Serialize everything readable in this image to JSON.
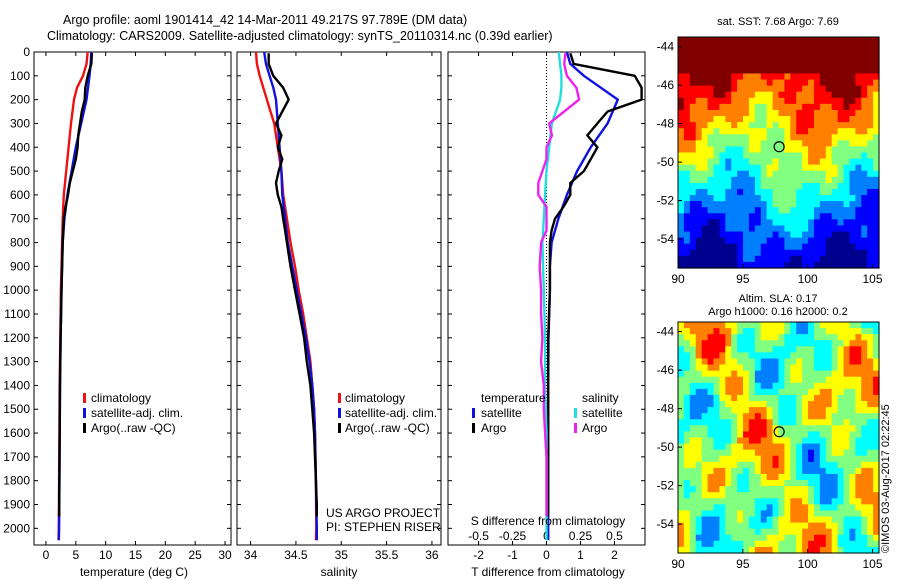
{
  "header": {
    "line1": "Argo profile: aoml 1901414_42 14-Mar-2011 49.217S 97.789E (DM data)",
    "line2": "Climatology: CARS2009. Satellite-adjusted climatology: synTS_20110314.nc (0.39d earlier)"
  },
  "footer": {
    "project": "US ARGO PROJECT",
    "pi": "PI: STEPHEN RISER",
    "stamp": "©IMOS 03-Aug-2017 02:22:45"
  },
  "colors": {
    "climatology": "#ee1111",
    "satellite": "#1111dd",
    "argo": "#000000",
    "sat_salinity": "#22dddd",
    "argo_salinity": "#ee22ee"
  },
  "chart_data": [
    {
      "id": "temperature",
      "type": "line",
      "xlabel": "temperature (deg C)",
      "xlim": [
        -2,
        31
      ],
      "xticks": [
        0,
        5,
        10,
        15,
        20,
        25,
        30
      ],
      "ylim": [
        2070,
        0
      ],
      "yticks": [
        0,
        100,
        200,
        300,
        400,
        500,
        600,
        700,
        800,
        900,
        1000,
        1100,
        1200,
        1300,
        1400,
        1500,
        1600,
        1700,
        1800,
        1900,
        2000
      ],
      "legend": [
        "climatology",
        "satellite-adj. clim.",
        "Argo(..raw -QC)"
      ],
      "series": [
        {
          "name": "climatology",
          "color": "#ee1111",
          "depth": [
            0,
            50,
            100,
            150,
            200,
            300,
            400,
            500,
            600,
            700,
            800,
            900,
            1000,
            1200,
            1400,
            1600,
            1800,
            2000,
            2050
          ],
          "values": [
            7.0,
            6.8,
            6.2,
            5.2,
            4.7,
            4.2,
            3.8,
            3.4,
            3.0,
            2.8,
            2.7,
            2.6,
            2.5,
            2.4,
            2.3,
            2.25,
            2.2,
            2.15,
            2.1
          ]
        },
        {
          "name": "satellite-adj. clim.",
          "color": "#1111dd",
          "depth": [
            0,
            50,
            100,
            200,
            300,
            400,
            500,
            600,
            700,
            800,
            900,
            1000,
            1200,
            1400,
            1600,
            1800,
            2000,
            2050
          ],
          "values": [
            7.6,
            7.5,
            7.3,
            6.8,
            5.9,
            5.0,
            4.3,
            3.6,
            3.1,
            2.8,
            2.7,
            2.6,
            2.45,
            2.35,
            2.3,
            2.25,
            2.2,
            2.15
          ]
        },
        {
          "name": "Argo(..raw -QC)",
          "color": "#000000",
          "depth": [
            5,
            50,
            100,
            150,
            200,
            250,
            300,
            350,
            400,
            450,
            500,
            550,
            600,
            650,
            700,
            750,
            800,
            900,
            1000,
            1200,
            1400,
            1600,
            1800,
            1950
          ],
          "values": [
            7.7,
            7.6,
            7.0,
            6.6,
            6.5,
            6.0,
            5.7,
            5.4,
            5.3,
            5.0,
            4.5,
            4.0,
            3.7,
            3.3,
            3.0,
            2.9,
            2.8,
            2.7,
            2.6,
            2.45,
            2.35,
            2.3,
            2.25,
            2.2
          ]
        }
      ]
    },
    {
      "id": "salinity",
      "type": "line",
      "xlabel": "salinity",
      "xlim": [
        33.85,
        36.1
      ],
      "xticks": [
        34,
        34.5,
        35,
        35.5,
        36
      ],
      "ylim": [
        2070,
        0
      ],
      "legend": [
        "climatology",
        "satellite-adj. clim.",
        "Argo(..raw -QC)"
      ],
      "series": [
        {
          "name": "climatology",
          "color": "#ee1111",
          "depth": [
            0,
            50,
            100,
            150,
            200,
            250,
            300,
            400,
            500,
            600,
            700,
            800,
            900,
            1000,
            1100,
            1200,
            1300,
            1400,
            1500,
            1600,
            1800,
            2000,
            2050
          ],
          "values": [
            34.06,
            34.07,
            34.1,
            34.14,
            34.18,
            34.22,
            34.26,
            34.3,
            34.34,
            34.36,
            34.4,
            34.44,
            34.49,
            34.53,
            34.58,
            34.62,
            34.66,
            34.68,
            34.7,
            34.71,
            34.72,
            34.725,
            34.72
          ]
        },
        {
          "name": "satellite-adj. clim.",
          "color": "#1111dd",
          "depth": [
            0,
            50,
            100,
            150,
            200,
            300,
            400,
            500,
            600,
            700,
            800,
            900,
            1000,
            1100,
            1200,
            1300,
            1400,
            1500,
            1600,
            1800,
            2000,
            2050
          ],
          "values": [
            34.15,
            34.17,
            34.21,
            34.25,
            34.28,
            34.3,
            34.32,
            34.34,
            34.35,
            34.38,
            34.41,
            34.46,
            34.51,
            34.56,
            34.61,
            34.65,
            34.68,
            34.7,
            34.71,
            34.72,
            34.73,
            34.73
          ]
        },
        {
          "name": "Argo(..raw -QC)",
          "color": "#000000",
          "depth": [
            5,
            50,
            100,
            150,
            200,
            250,
            300,
            350,
            400,
            450,
            500,
            550,
            600,
            650,
            700,
            750,
            800,
            900,
            1000,
            1100,
            1200,
            1300,
            1400,
            1500,
            1600,
            1700,
            1800,
            1900,
            1950
          ],
          "values": [
            34.2,
            34.2,
            34.25,
            34.36,
            34.42,
            34.35,
            34.28,
            34.34,
            34.3,
            34.35,
            34.31,
            34.28,
            34.3,
            34.34,
            34.36,
            34.38,
            34.4,
            34.44,
            34.49,
            34.54,
            34.59,
            34.62,
            34.66,
            34.68,
            34.7,
            34.71,
            34.72,
            34.73,
            34.73
          ]
        }
      ]
    },
    {
      "id": "difference",
      "type": "line",
      "xlabel": "T difference from climatology",
      "xlim": [
        -2.9,
        2.9
      ],
      "xticks": [
        -2,
        -1,
        0,
        1,
        2
      ],
      "x2label": "S difference from climatology",
      "x2ticks": [
        -0.5,
        -0.25,
        0,
        0.25,
        0.5
      ],
      "x2ticklabels": [
        "-0.5",
        "-0.25",
        "0",
        "0.25",
        "0.5"
      ],
      "ylim": [
        2070,
        0
      ],
      "legend_titles": [
        "temperature",
        "salinity"
      ],
      "legend_left": [
        "satellite",
        "Argo"
      ],
      "legend_right": [
        "satellite",
        "Argo"
      ],
      "series": [
        {
          "name": "temperature satellite",
          "color": "#1111dd",
          "depth": [
            0,
            50,
            100,
            150,
            200,
            300,
            400,
            500,
            600,
            700,
            800,
            900,
            1000,
            1200,
            1400,
            1600,
            1800,
            2000,
            2050
          ],
          "values": [
            0.6,
            0.7,
            1.1,
            1.6,
            2.1,
            1.8,
            1.3,
            0.9,
            0.6,
            0.35,
            0.15,
            0.1,
            0.1,
            0.06,
            0.05,
            0.05,
            0.05,
            0.05,
            0.05
          ]
        },
        {
          "name": "temperature Argo",
          "color": "#000000",
          "depth": [
            5,
            50,
            100,
            150,
            200,
            250,
            300,
            350,
            400,
            450,
            500,
            550,
            600,
            650,
            700,
            750,
            800,
            900,
            1000,
            1200,
            1400,
            1600,
            1800,
            1950
          ],
          "values": [
            0.7,
            0.8,
            2.6,
            2.8,
            2.8,
            1.8,
            1.5,
            1.2,
            1.5,
            1.3,
            1.1,
            0.7,
            0.7,
            0.5,
            0.25,
            0.15,
            0.1,
            0.1,
            0.1,
            0.05,
            0.05,
            0.05,
            0.05,
            0.05
          ]
        },
        {
          "name": "salinity satellite",
          "color": "#22dddd",
          "depth": [
            0,
            50,
            100,
            150,
            200,
            300,
            400,
            500,
            600,
            700,
            800,
            1000,
            1200,
            1400,
            1600,
            1800,
            2000,
            2050
          ],
          "values": [
            0.09,
            0.1,
            0.11,
            0.11,
            0.1,
            0.04,
            0.02,
            0.0,
            -0.01,
            -0.02,
            -0.03,
            -0.02,
            -0.01,
            -0.01,
            0.0,
            0.0,
            0.0,
            0.0
          ]
        },
        {
          "name": "salinity Argo",
          "color": "#ee22ee",
          "depth": [
            5,
            50,
            100,
            150,
            200,
            250,
            300,
            350,
            400,
            450,
            500,
            550,
            600,
            650,
            700,
            750,
            800,
            900,
            1000,
            1100,
            1200,
            1300,
            1400,
            1500,
            1600,
            1700,
            1800,
            1900,
            1950
          ],
          "values": [
            0.14,
            0.13,
            0.15,
            0.22,
            0.24,
            0.13,
            0.02,
            0.04,
            0.0,
            0.0,
            -0.03,
            -0.06,
            -0.06,
            0.0,
            0.0,
            0.0,
            -0.04,
            -0.05,
            -0.04,
            -0.04,
            -0.03,
            -0.04,
            -0.02,
            -0.02,
            -0.01,
            0.0,
            0.0,
            0.0,
            0.0
          ]
        }
      ]
    },
    {
      "id": "sst_map",
      "type": "heatmap",
      "title": "sat. SST: 7.68 Argo: 7.69",
      "xlim": [
        90,
        105.5
      ],
      "ylim": [
        -55.5,
        -43.5
      ],
      "xticks": [
        90,
        95,
        100,
        105
      ],
      "yticks": [
        -44,
        -46,
        -48,
        -50,
        -52,
        -54
      ],
      "marker": {
        "lon": 97.8,
        "lat": -49.2
      },
      "palette": [
        "#00008f",
        "#0000ff",
        "#0080ff",
        "#00ffff",
        "#80ff80",
        "#ffff00",
        "#ff8000",
        "#ff0000",
        "#800000"
      ]
    },
    {
      "id": "sla_map",
      "type": "heatmap",
      "title": "Altim. SLA: 0.17",
      "subtitle": "Argo h1000: 0.16 h2000: 0.2",
      "xlim": [
        90,
        105.5
      ],
      "ylim": [
        -55.5,
        -43.5
      ],
      "xticks": [
        90,
        95,
        100,
        105
      ],
      "yticks": [
        -44,
        -46,
        -48,
        -50,
        -52,
        -54
      ],
      "marker": {
        "lon": 97.8,
        "lat": -49.2
      },
      "palette": [
        "#00008f",
        "#0000ff",
        "#0080ff",
        "#00ffff",
        "#80ff80",
        "#ffff00",
        "#ff8000",
        "#ff0000",
        "#800000"
      ]
    }
  ]
}
